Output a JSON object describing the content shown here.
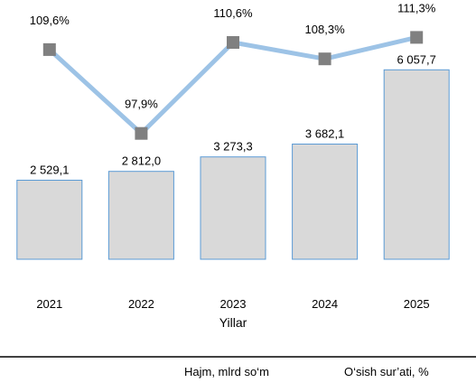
{
  "chart_data": {
    "type": "bar+line",
    "categories": [
      "2021",
      "2022",
      "2023",
      "2024",
      "2025"
    ],
    "series": [
      {
        "name": "Hajm, mlrd so‘m",
        "kind": "bar",
        "values": [
          2529.1,
          2812.0,
          3273.3,
          3682.1,
          6057.7
        ],
        "labels": [
          "2 529,1",
          "2 812,0",
          "3 273,3",
          "3 682,1",
          "6 057,7"
        ],
        "color": "#d9d9d9",
        "edge_color": "#5b9bd5"
      },
      {
        "name": "O‘sish sur’ati, %",
        "kind": "line",
        "values": [
          109.6,
          97.9,
          110.6,
          108.3,
          111.3
        ],
        "labels": [
          "109,6%",
          "97,9%",
          "110,6%",
          "108,3%",
          "111,3%"
        ],
        "color": "#9dc3e6",
        "marker_color": "#808080"
      }
    ],
    "xlabel": "Yillar",
    "ylabel": "",
    "bar_ylim": [
      0,
      6500
    ],
    "line_ylim": [
      85,
      114
    ],
    "grid": false,
    "legend_position": "bottom"
  }
}
